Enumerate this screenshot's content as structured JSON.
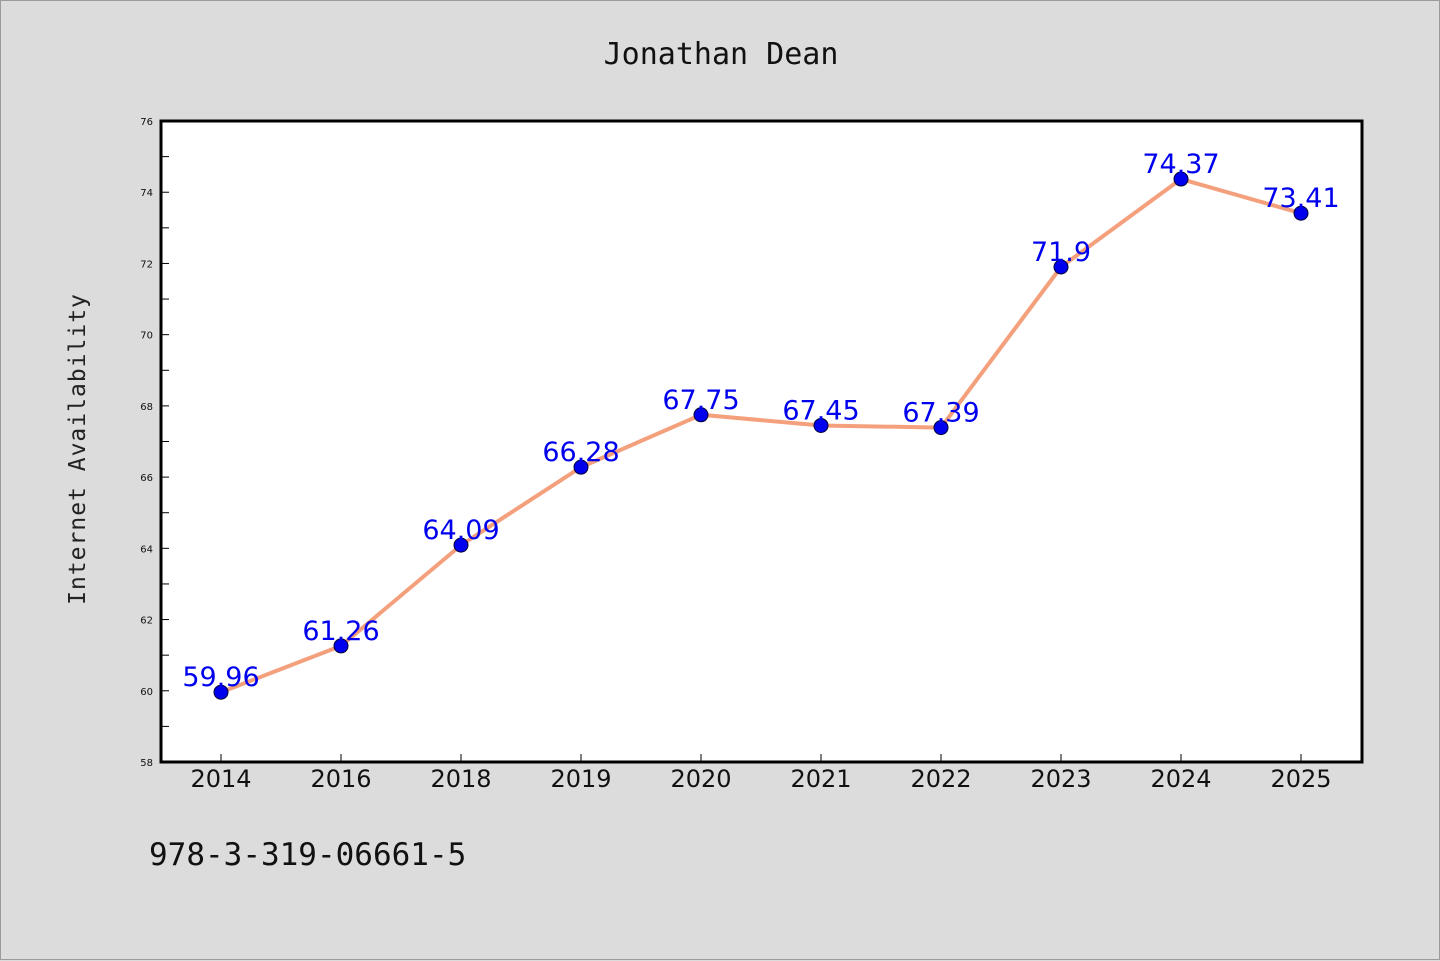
{
  "chart_data": {
    "type": "line",
    "title": "Jonathan Dean",
    "xlabel": "",
    "ylabel": "Internet Availability",
    "categories": [
      "2014",
      "2016",
      "2018",
      "2019",
      "2020",
      "2021",
      "2022",
      "2023",
      "2024",
      "2025"
    ],
    "series": [
      {
        "values": [
          59.96,
          61.26,
          64.09,
          66.28,
          67.75,
          67.45,
          67.39,
          71.9,
          74.37,
          73.41
        ],
        "data_labels": [
          "59.96",
          "61.26",
          "64.09",
          "66.28",
          "67.75",
          "67.45",
          "67.39",
          "71.9",
          "74.37",
          "73.41"
        ],
        "line_color": "#f4a07c",
        "marker_color": "#0000ee",
        "label_color": "#0000ee"
      }
    ],
    "ylim": [
      58,
      76
    ],
    "yticks": [
      "58",
      "60",
      "62",
      "64",
      "66",
      "68",
      "70",
      "72",
      "74",
      "76"
    ],
    "grid": false,
    "legend": "none"
  },
  "footer": {
    "isbn": "978-3-319-06661-5"
  },
  "colors": {
    "background": "#dcdcdc",
    "plot_background": "#ffffff",
    "axis": "#000000"
  }
}
